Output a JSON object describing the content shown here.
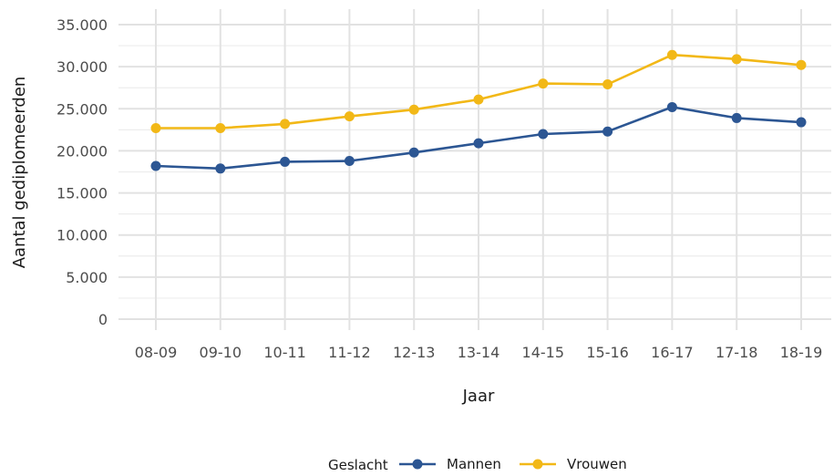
{
  "chart_data": {
    "type": "line",
    "title": "",
    "xlabel": "Jaar",
    "ylabel": "Aantal gediplomeerden",
    "categories": [
      "08-09",
      "09-10",
      "10-11",
      "11-12",
      "12-13",
      "13-14",
      "14-15",
      "15-16",
      "16-17",
      "17-18",
      "18-19"
    ],
    "ylim": [
      0,
      35000
    ],
    "yticks": [
      0,
      5000,
      10000,
      15000,
      20000,
      25000,
      30000,
      35000
    ],
    "ytick_labels": [
      "0",
      "5.000",
      "10.000",
      "15.000",
      "20.000",
      "25.000",
      "30.000",
      "35.000"
    ],
    "grid": true,
    "legend": {
      "title": "Geslacht",
      "position": "bottom"
    },
    "series": [
      {
        "name": "Mannen",
        "color": "#2c5693",
        "values": [
          18200,
          17900,
          18700,
          18800,
          19800,
          20900,
          22000,
          22300,
          25200,
          23900,
          23400
        ]
      },
      {
        "name": "Vrouwen",
        "color": "#f2b817",
        "values": [
          22700,
          22700,
          23200,
          24100,
          24900,
          26100,
          28000,
          27900,
          31400,
          30900,
          30200
        ]
      }
    ]
  }
}
